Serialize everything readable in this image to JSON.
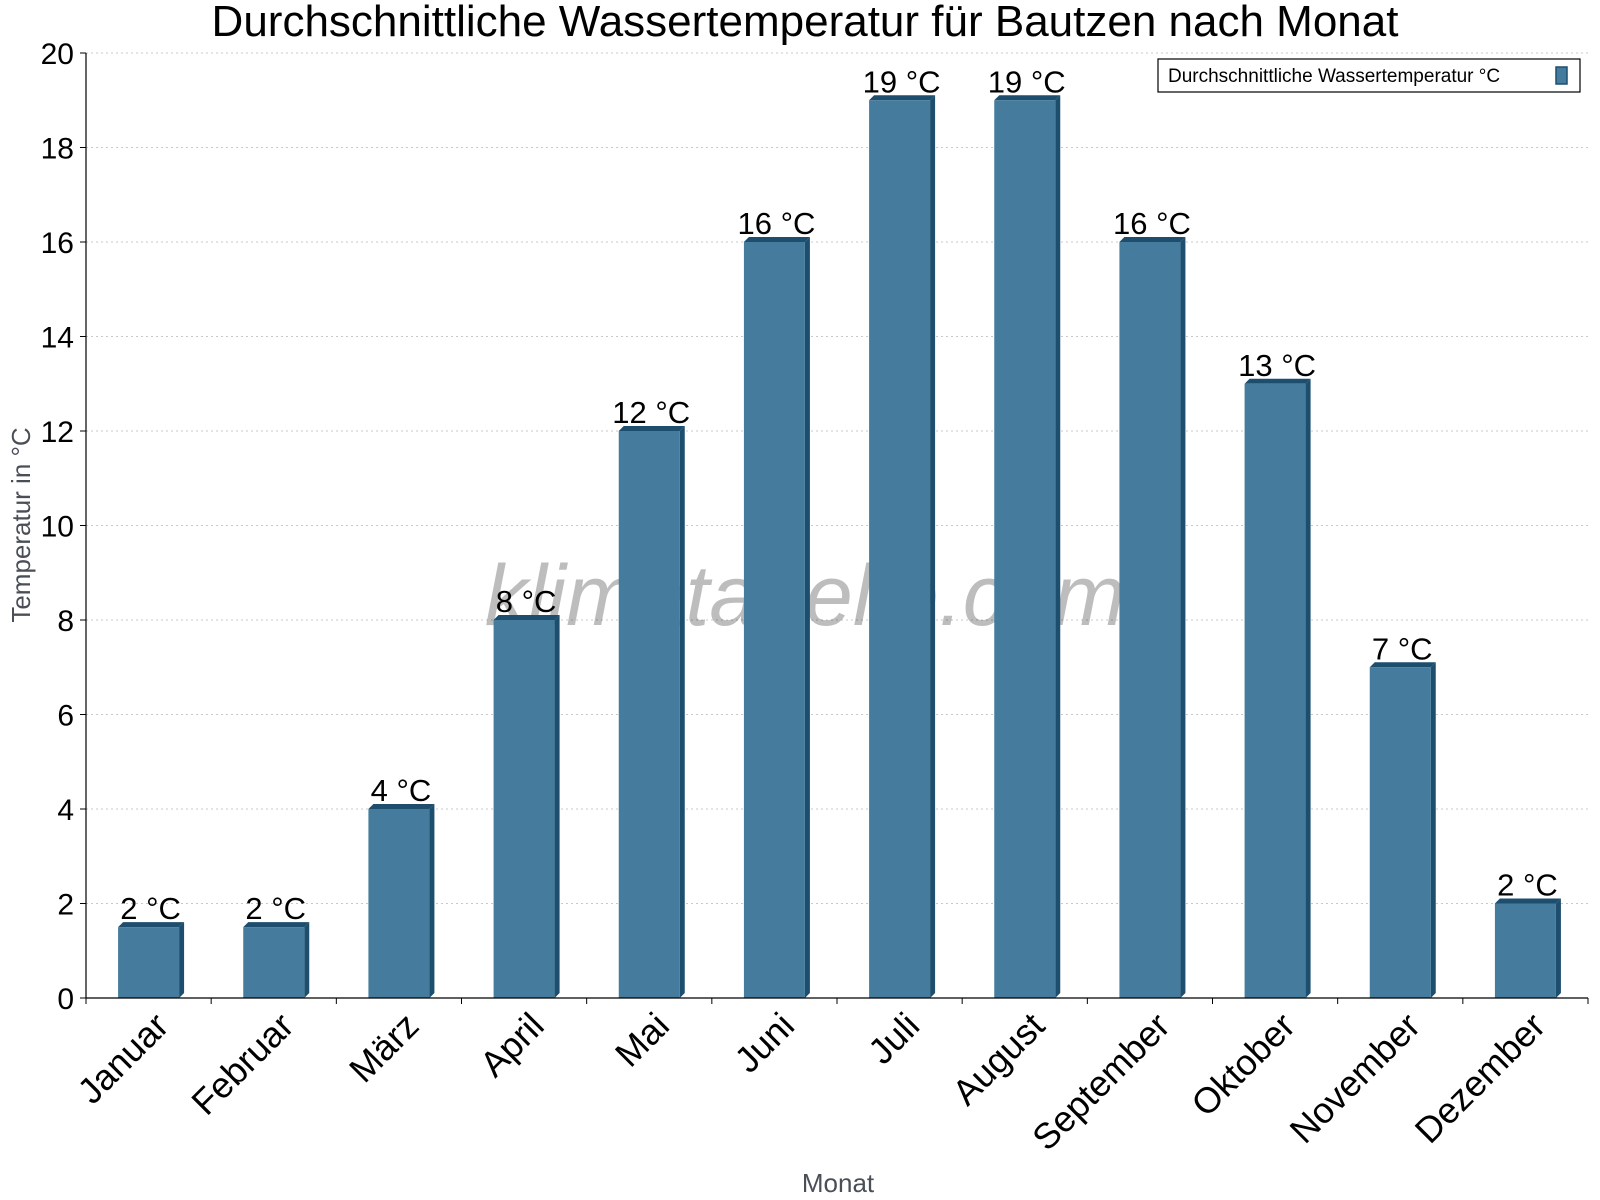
{
  "chart_data": {
    "type": "bar",
    "title": "Durchschnittliche Wassertemperatur für Bautzen nach Monat",
    "xlabel": "Monat",
    "ylabel": "Temperatur in °C",
    "categories": [
      "Januar",
      "Februar",
      "März",
      "April",
      "Mai",
      "Juni",
      "Juli",
      "August",
      "September",
      "Oktober",
      "November",
      "Dezember"
    ],
    "series": [
      {
        "name": "Durchschnittliche Wassertemperatur °C",
        "values": [
          1.5,
          1.5,
          4,
          8,
          12,
          16,
          19,
          19,
          16,
          13,
          7,
          2
        ],
        "labels": [
          "2 °C",
          "2 °C",
          "4 °C",
          "8 °C",
          "12 °C",
          "16 °C",
          "19 °C",
          "19 °C",
          "16 °C",
          "13 °C",
          "7 °C",
          "2 °C"
        ]
      }
    ],
    "ylim": [
      0,
      20
    ],
    "yticks": [
      "0",
      "2",
      "4",
      "6",
      "8",
      "10",
      "12",
      "14",
      "16",
      "18",
      "20"
    ],
    "grid": true,
    "legend_position": "top-right",
    "colors": {
      "bar": "#457b9d",
      "bar_side": "#1d4e6e",
      "grid": "#c8c8c8"
    }
  },
  "watermark": "klimatabelle.com"
}
